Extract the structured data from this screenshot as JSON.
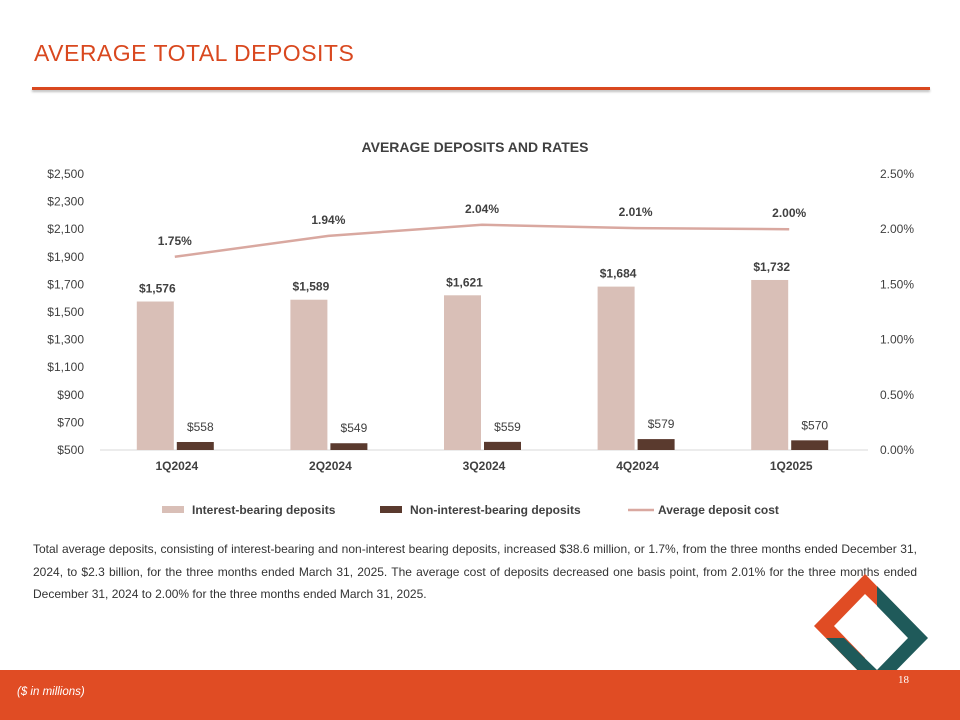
{
  "page": {
    "title": "AVERAGE TOTAL DEPOSITS",
    "body_text": "Total average deposits, consisting of interest-bearing and non-interest bearing deposits, increased $38.6 million, or 1.7%, from the three months ended December 31, 2024, to $2.3 billion, for the three months ended March 31, 2025. The average cost of deposits decreased one basis point, from 2.01% for the three months ended December 31, 2024 to 2.00% for the three months ended March 31, 2025.",
    "footnote": "($ in millions)",
    "page_number": "18"
  },
  "colors": {
    "accent": "#d9481f",
    "footer": "#e04c24",
    "interest_bearing": "#d9bfb7",
    "non_interest_bearing": "#5a3a2e",
    "avg_cost_line": "#d9a8a0",
    "logo_orange": "#e04c24",
    "logo_teal": "#1f5a5a"
  },
  "chart_data": {
    "type": "bar",
    "title": "AVERAGE DEPOSITS AND RATES",
    "categories": [
      "1Q2024",
      "2Q2024",
      "3Q2024",
      "4Q2024",
      "1Q2025"
    ],
    "series": [
      {
        "name": "Interest-bearing deposits",
        "type": "bar",
        "axis": "left",
        "values": [
          1576,
          1589,
          1621,
          1684,
          1732
        ],
        "labels": [
          "$1,576",
          "$1,589",
          "$1,621",
          "$1,684",
          "$1,732"
        ]
      },
      {
        "name": "Non-interest-bearing deposits",
        "type": "bar",
        "axis": "left",
        "values": [
          558,
          549,
          559,
          579,
          570
        ],
        "labels": [
          "$558",
          "$549",
          "$559",
          "$579",
          "$570"
        ]
      },
      {
        "name": "Average deposit cost",
        "type": "line",
        "axis": "right",
        "values": [
          1.75,
          1.94,
          2.04,
          2.01,
          2.0
        ],
        "labels": [
          "1.75%",
          "1.94%",
          "2.04%",
          "2.01%",
          "2.00%"
        ]
      }
    ],
    "y_left": {
      "min": 500,
      "max": 2500,
      "ticks": [
        "$2,500",
        "$2,300",
        "$2,100",
        "$1,900",
        "$1,700",
        "$1,500",
        "$1,300",
        "$1,100",
        "$900",
        "$700",
        "$500"
      ]
    },
    "y_right": {
      "min": 0,
      "max": 2.5,
      "ticks": [
        "2.50%",
        "2.00%",
        "1.50%",
        "1.00%",
        "0.50%",
        "0.00%"
      ]
    },
    "grid": false,
    "legend": "bottom"
  }
}
